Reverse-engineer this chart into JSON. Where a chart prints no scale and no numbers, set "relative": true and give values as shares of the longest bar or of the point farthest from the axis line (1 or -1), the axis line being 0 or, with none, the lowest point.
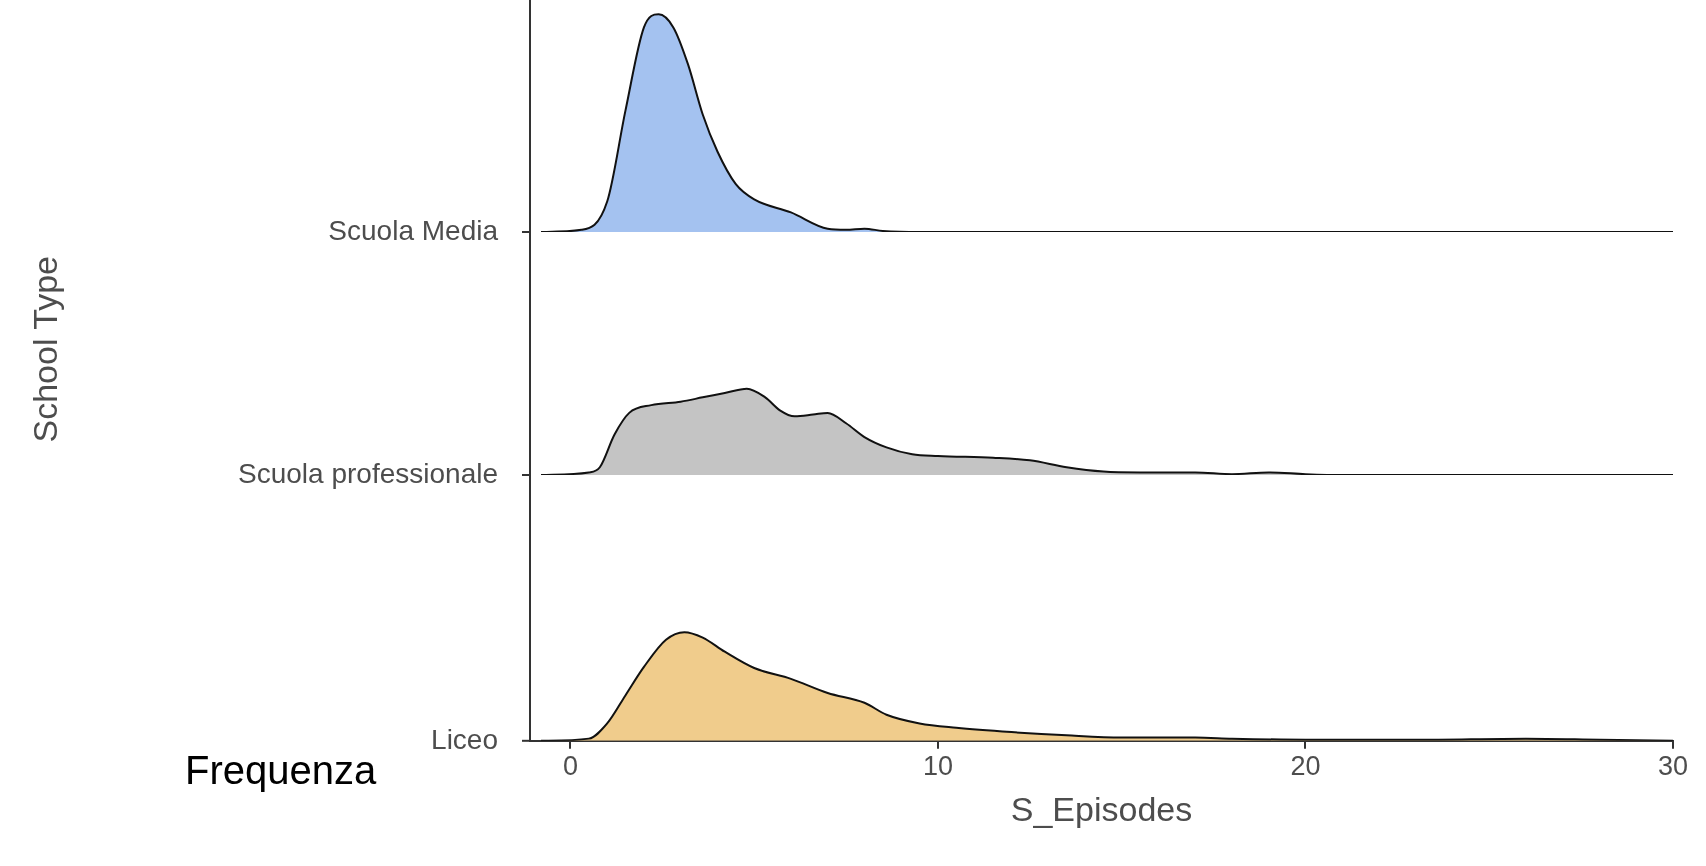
{
  "chart_data": [
    {
      "type": "area",
      "relative": true,
      "ylabel": "Scuola Media",
      "xlim": [
        -1.1,
        30
      ],
      "tick_labels": false,
      "series": [
        {
          "color": "#a4c2f0",
          "x": [
            -0.8,
            0.3,
            1.0,
            1.5,
            2.0,
            2.4,
            2.8,
            3.2,
            3.6,
            4.0,
            4.5,
            5,
            6,
            7,
            7.5,
            8,
            8.5,
            9.5,
            30
          ],
          "values": [
            0,
            0.01,
            0.14,
            0.56,
            0.94,
            1.0,
            0.94,
            0.77,
            0.54,
            0.37,
            0.22,
            0.15,
            0.09,
            0.015,
            0.01,
            0.015,
            0.005,
            0,
            0
          ]
        }
      ]
    },
    {
      "type": "area",
      "relative": true,
      "ylabel": "Scuola professionale",
      "xlim": [
        -1.1,
        30
      ],
      "tick_labels": false,
      "annotations": [
        "School Type"
      ],
      "series": [
        {
          "color": "#c4c4c4",
          "x": [
            -0.8,
            0.5,
            0.8,
            1.2,
            1.6,
            2.2,
            3.0,
            3.6,
            4.2,
            4.8,
            5.3,
            5.7,
            6.1,
            6.6,
            7.0,
            7.5,
            8,
            8.6,
            9.3,
            10,
            11.5,
            12.5,
            13.5,
            14.5,
            15.5,
            17,
            18,
            19,
            20,
            21,
            30
          ],
          "values": [
            0,
            0.03,
            0.09,
            0.47,
            0.72,
            0.81,
            0.85,
            0.9,
            0.95,
            1,
            0.9,
            0.75,
            0.68,
            0.7,
            0.72,
            0.6,
            0.44,
            0.32,
            0.24,
            0.22,
            0.2,
            0.17,
            0.09,
            0.04,
            0.03,
            0.03,
            0.01,
            0.03,
            0.01,
            0,
            0
          ]
        }
      ]
    },
    {
      "type": "area",
      "relative": true,
      "ylabel": "Liceo",
      "xlabel": "S_Episodes",
      "xlim": [
        -1.1,
        30
      ],
      "xticks": [
        0,
        10,
        20,
        30
      ],
      "tick_labels": "x",
      "annotations": [
        "Frequenza"
      ],
      "series": [
        {
          "color": "#f0cc8c",
          "x": [
            -0.8,
            0.5,
            1.0,
            1.5,
            2.0,
            2.6,
            3.1,
            3.6,
            4.2,
            5,
            6,
            7,
            8,
            8.6,
            9.5,
            10.5,
            12,
            13.5,
            15,
            17,
            18,
            20,
            23,
            26,
            28,
            30
          ],
          "values": [
            0,
            0.02,
            0.16,
            0.42,
            0.68,
            0.93,
            1,
            0.95,
            0.82,
            0.67,
            0.57,
            0.44,
            0.35,
            0.24,
            0.16,
            0.12,
            0.08,
            0.05,
            0.03,
            0.03,
            0.02,
            0.01,
            0.01,
            0.02,
            0.01,
            0
          ]
        }
      ]
    }
  ]
}
